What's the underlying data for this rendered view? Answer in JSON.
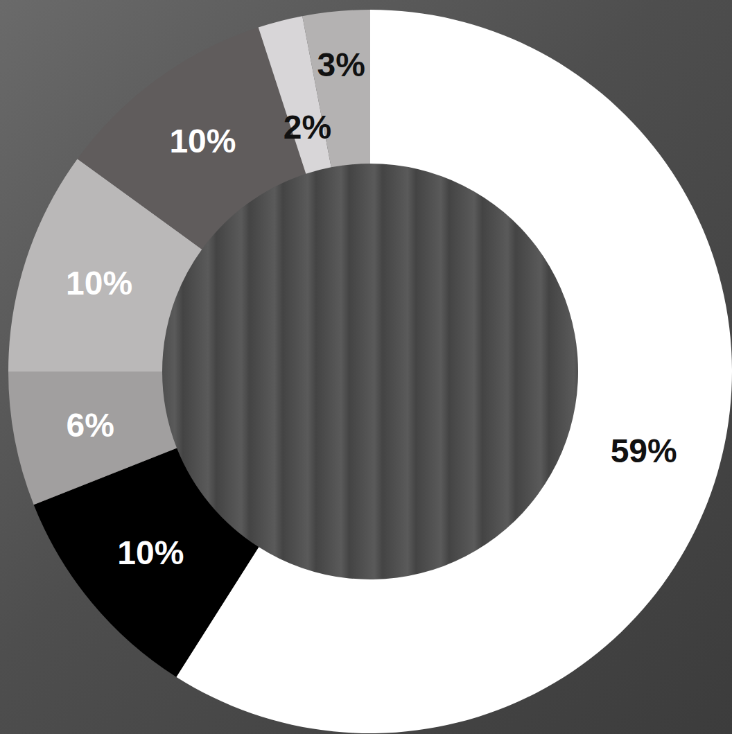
{
  "chart_data": {
    "type": "pie",
    "values": [
      59,
      10,
      6,
      10,
      10,
      2,
      3
    ],
    "colors": [
      "#ffffff",
      "#000000",
      "#a19f9f",
      "#bab8b8",
      "#605c5c",
      "#d8d6d8",
      "#b4b2b2"
    ],
    "data_labels": true,
    "value_labels": [
      "59%",
      "10%",
      "6%",
      "10%",
      "10%",
      "2%",
      "3%"
    ]
  }
}
